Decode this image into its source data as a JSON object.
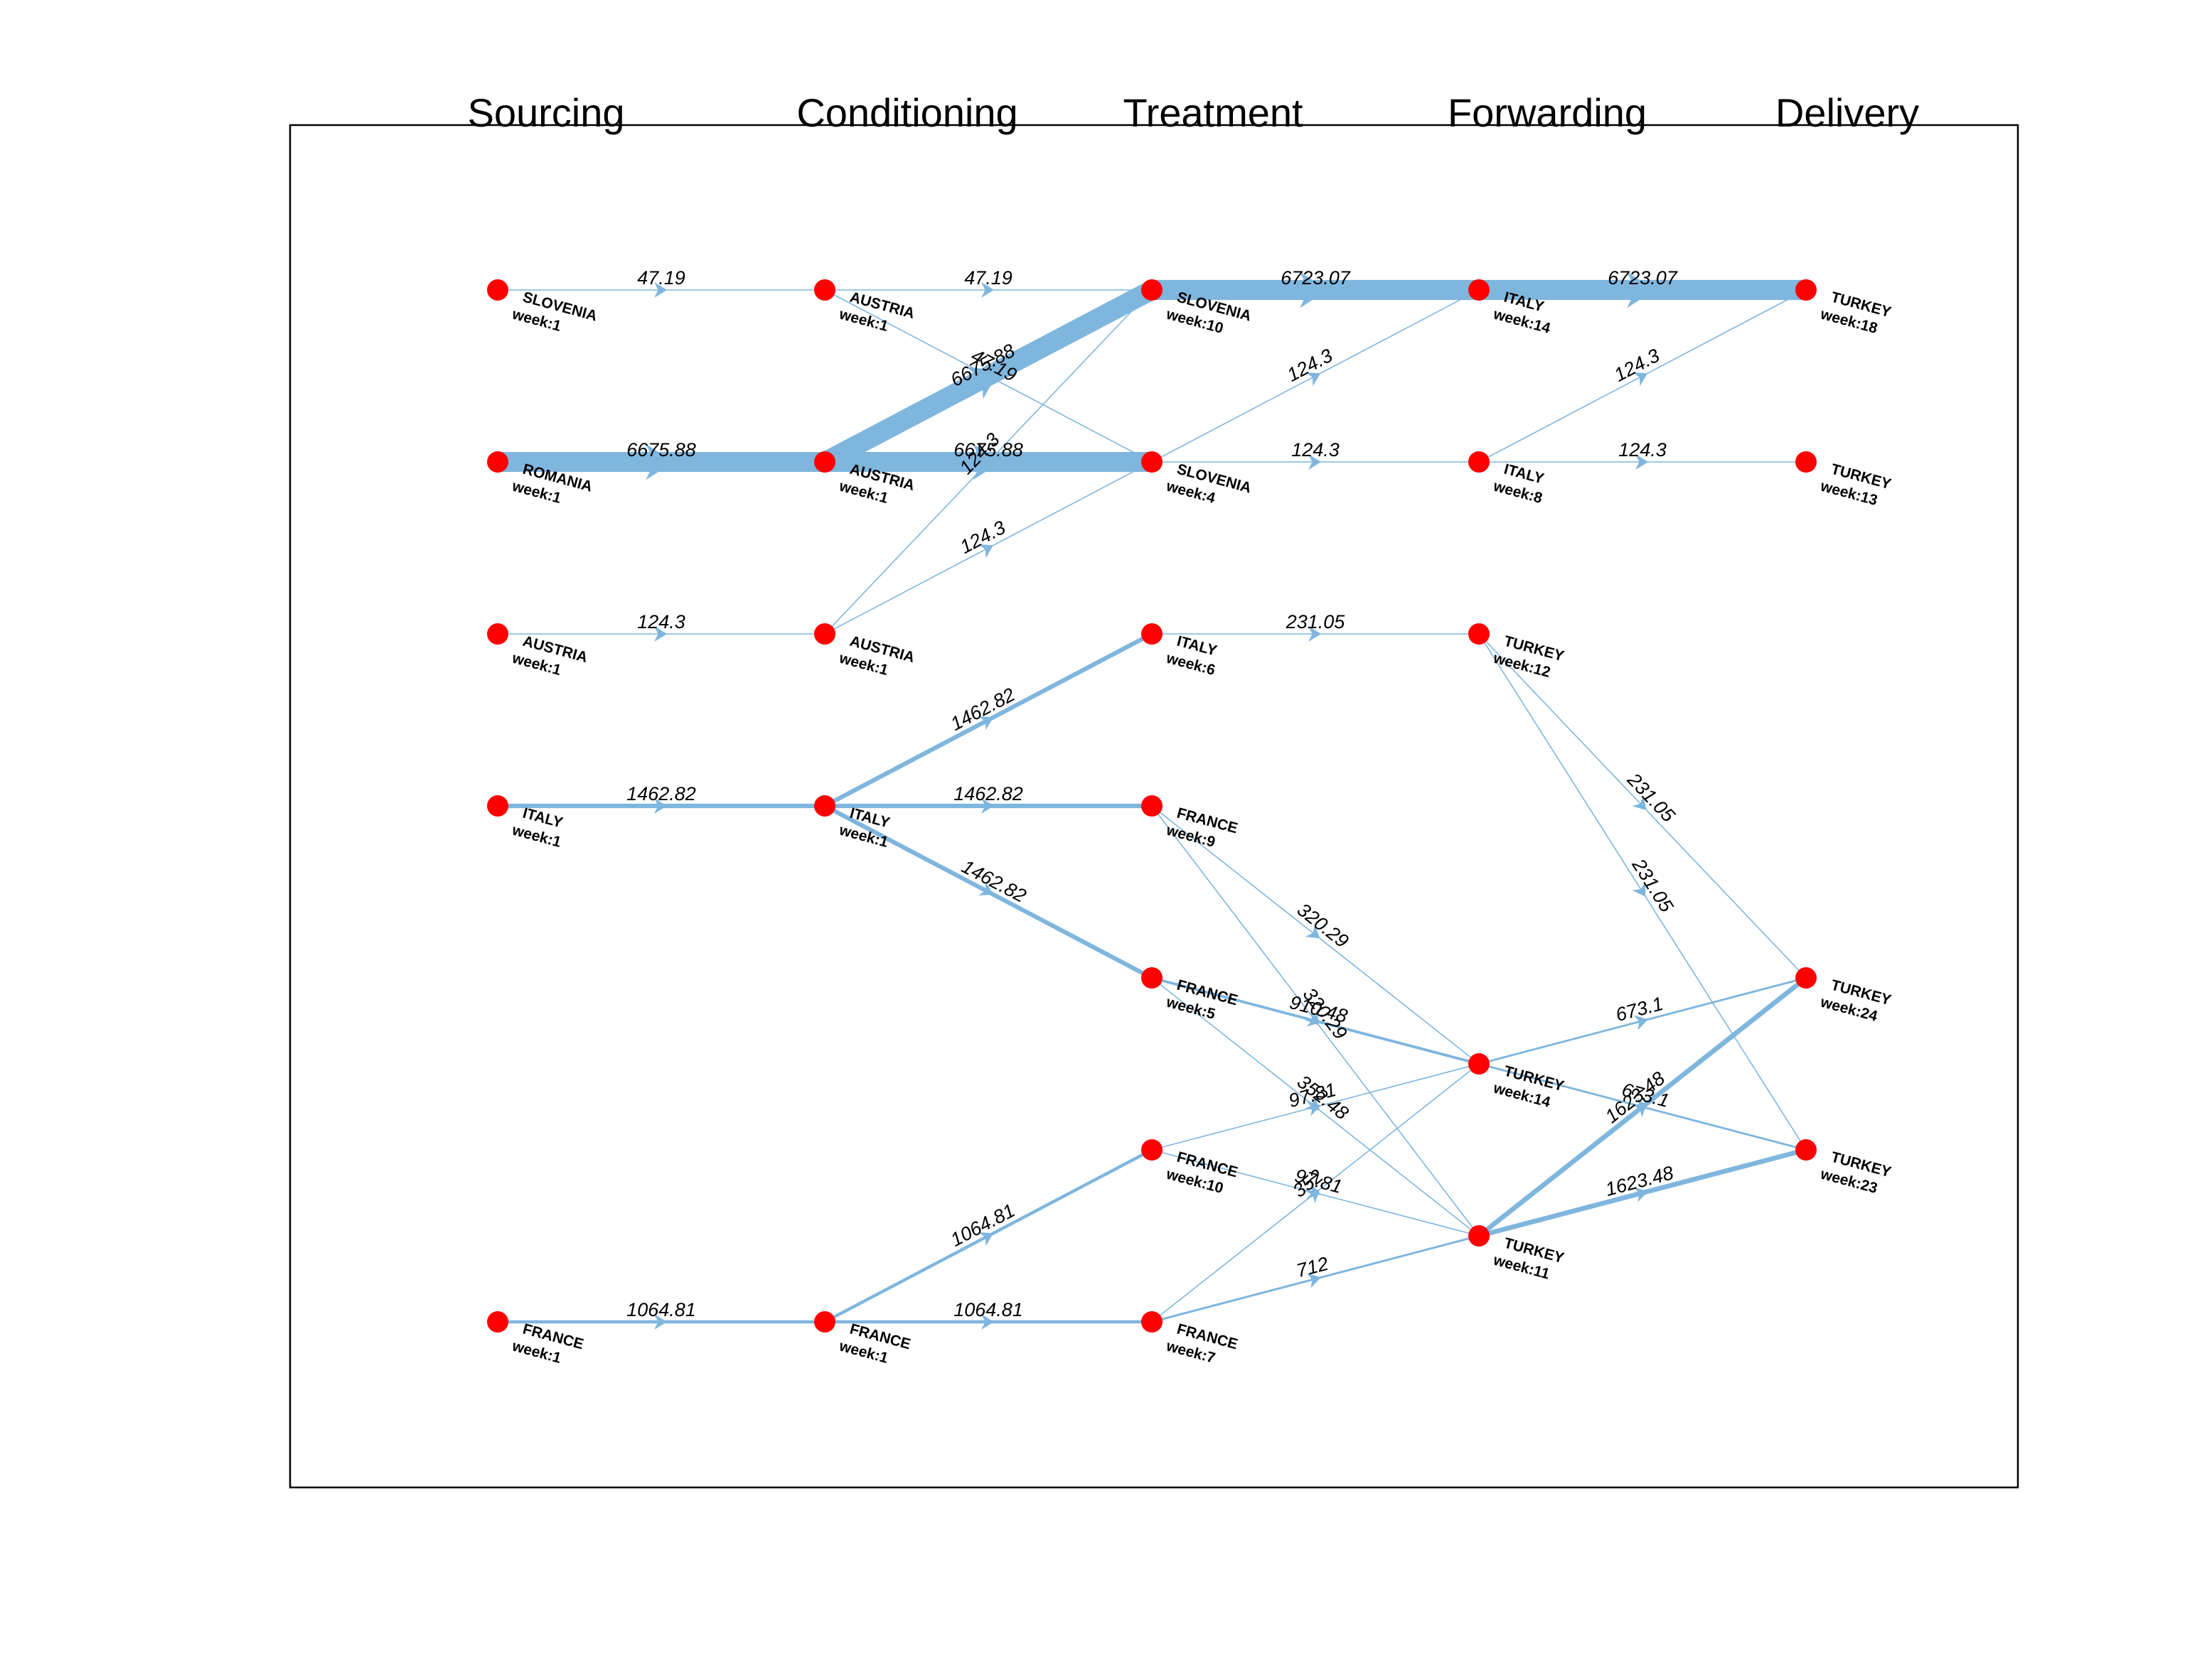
{
  "colors": {
    "edge": "#7fb6de",
    "node": "#ff0000",
    "frame": "#000000"
  },
  "stages": [
    "Sourcing",
    "Conditioning",
    "Treatment",
    "Forwarding",
    "Delivery"
  ],
  "nodes": [
    {
      "id": "s_slo",
      "stage": 0,
      "row": 0,
      "name": "SLOVENIA",
      "week": "week:1"
    },
    {
      "id": "s_rom",
      "stage": 0,
      "row": 1,
      "name": "ROMANIA",
      "week": "week:1"
    },
    {
      "id": "s_aut",
      "stage": 0,
      "row": 2,
      "name": "AUSTRIA",
      "week": "week:1"
    },
    {
      "id": "s_ita",
      "stage": 0,
      "row": 3,
      "name": "ITALY",
      "week": "week:1"
    },
    {
      "id": "s_fra",
      "stage": 0,
      "row": 6,
      "name": "FRANCE",
      "week": "week:1"
    },
    {
      "id": "c_aut0",
      "stage": 1,
      "row": 0,
      "name": "AUSTRIA",
      "week": "week:1"
    },
    {
      "id": "c_aut1",
      "stage": 1,
      "row": 1,
      "name": "AUSTRIA",
      "week": "week:1"
    },
    {
      "id": "c_aut2",
      "stage": 1,
      "row": 2,
      "name": "AUSTRIA",
      "week": "week:1"
    },
    {
      "id": "c_ita",
      "stage": 1,
      "row": 3,
      "name": "ITALY",
      "week": "week:1"
    },
    {
      "id": "c_fra",
      "stage": 1,
      "row": 6,
      "name": "FRANCE",
      "week": "week:1"
    },
    {
      "id": "t_slo10",
      "stage": 2,
      "row": 0,
      "name": "SLOVENIA",
      "week": "week:10"
    },
    {
      "id": "t_slo4",
      "stage": 2,
      "row": 1,
      "name": "SLOVENIA",
      "week": "week:4"
    },
    {
      "id": "t_ita6",
      "stage": 2,
      "row": 2,
      "name": "ITALY",
      "week": "week:6"
    },
    {
      "id": "t_fra9",
      "stage": 2,
      "row": 3,
      "name": "FRANCE",
      "week": "week:9"
    },
    {
      "id": "t_fra5",
      "stage": 2,
      "row": 4,
      "name": "FRANCE",
      "week": "week:5"
    },
    {
      "id": "t_fra10",
      "stage": 2,
      "row": 5,
      "name": "FRANCE",
      "week": "week:10"
    },
    {
      "id": "t_fra7",
      "stage": 2,
      "row": 6,
      "name": "FRANCE",
      "week": "week:7"
    },
    {
      "id": "f_ita14",
      "stage": 3,
      "row": 0,
      "name": "ITALY",
      "week": "week:14"
    },
    {
      "id": "f_ita8",
      "stage": 3,
      "row": 1,
      "name": "ITALY",
      "week": "week:8"
    },
    {
      "id": "f_tur12",
      "stage": 3,
      "row": 2,
      "name": "TURKEY",
      "week": "week:12"
    },
    {
      "id": "f_tur14",
      "stage": 3,
      "row": 4.5,
      "name": "TURKEY",
      "week": "week:14"
    },
    {
      "id": "f_tur11",
      "stage": 3,
      "row": 5.5,
      "name": "TURKEY",
      "week": "week:11"
    },
    {
      "id": "d_tur18",
      "stage": 4,
      "row": 0,
      "name": "TURKEY",
      "week": "week:18"
    },
    {
      "id": "d_tur13",
      "stage": 4,
      "row": 1,
      "name": "TURKEY",
      "week": "week:13"
    },
    {
      "id": "d_tur24",
      "stage": 4,
      "row": 4,
      "name": "TURKEY",
      "week": "week:24"
    },
    {
      "id": "d_tur23",
      "stage": 4,
      "row": 5,
      "name": "TURKEY",
      "week": "week:23"
    }
  ],
  "edges": [
    {
      "from": "s_slo",
      "to": "c_aut0",
      "value": 47.19,
      "label": "47.19"
    },
    {
      "from": "s_rom",
      "to": "c_aut1",
      "value": 6675.88,
      "label": "6675.88"
    },
    {
      "from": "s_aut",
      "to": "c_aut2",
      "value": 124.3,
      "label": "124.3"
    },
    {
      "from": "s_ita",
      "to": "c_ita",
      "value": 1462.82,
      "label": "1462.82"
    },
    {
      "from": "s_fra",
      "to": "c_fra",
      "value": 1064.81,
      "label": "1064.81"
    },
    {
      "from": "c_aut0",
      "to": "t_slo10",
      "value": 47.19,
      "label": "47.19"
    },
    {
      "from": "c_aut0",
      "to": "t_slo4",
      "value": 47.19,
      "label": "47.19"
    },
    {
      "from": "c_aut1",
      "to": "t_slo10",
      "value": 6675.88,
      "label": "6675.88"
    },
    {
      "from": "c_aut1",
      "to": "t_slo4",
      "value": 6675.88,
      "label": "6675.88"
    },
    {
      "from": "c_aut2",
      "to": "t_slo10",
      "value": 124.3,
      "label": "124.3"
    },
    {
      "from": "c_aut2",
      "to": "t_slo4",
      "value": 124.3,
      "label": "124.3"
    },
    {
      "from": "c_ita",
      "to": "t_ita6",
      "value": 1462.82,
      "label": "1462.82"
    },
    {
      "from": "c_ita",
      "to": "t_fra9",
      "value": 1462.82,
      "label": "1462.82"
    },
    {
      "from": "c_ita",
      "to": "t_fra5",
      "value": 1462.82,
      "label": "1462.82"
    },
    {
      "from": "c_fra",
      "to": "t_fra10",
      "value": 1064.81,
      "label": "1064.81"
    },
    {
      "from": "c_fra",
      "to": "t_fra7",
      "value": 1064.81,
      "label": "1064.81"
    },
    {
      "from": "t_slo10",
      "to": "f_ita14",
      "value": 6723.07,
      "label": "6723.07"
    },
    {
      "from": "t_slo4",
      "to": "f_ita14",
      "value": 124.3,
      "label": "124.3"
    },
    {
      "from": "t_slo4",
      "to": "f_ita8",
      "value": 124.3,
      "label": "124.3"
    },
    {
      "from": "t_ita6",
      "to": "f_tur12",
      "value": 231.05,
      "label": "231.05"
    },
    {
      "from": "t_fra9",
      "to": "f_tur14",
      "value": 320.29,
      "label": "320.29"
    },
    {
      "from": "t_fra9",
      "to": "f_tur11",
      "value": 320.29,
      "label": "320.29"
    },
    {
      "from": "t_fra5",
      "to": "f_tur14",
      "value": 910.48,
      "label": "910.48"
    },
    {
      "from": "t_fra5",
      "to": "f_tur11",
      "value": 352.48,
      "label": "352.48"
    },
    {
      "from": "t_fra10",
      "to": "f_tur14",
      "value": 97.81,
      "label": "97.81"
    },
    {
      "from": "t_fra10",
      "to": "f_tur11",
      "value": 97.81,
      "label": "97.81"
    },
    {
      "from": "t_fra7",
      "to": "f_tur14",
      "value": 352,
      "label": "352"
    },
    {
      "from": "t_fra7",
      "to": "f_tur11",
      "value": 712,
      "label": "712"
    },
    {
      "from": "f_ita14",
      "to": "d_tur18",
      "value": 6723.07,
      "label": "6723.07"
    },
    {
      "from": "f_ita8",
      "to": "d_tur18",
      "value": 124.3,
      "label": "124.3"
    },
    {
      "from": "f_ita8",
      "to": "d_tur13",
      "value": 124.3,
      "label": "124.3"
    },
    {
      "from": "f_tur12",
      "to": "d_tur24",
      "value": 231.05,
      "label": "231.05"
    },
    {
      "from": "f_tur12",
      "to": "d_tur23",
      "value": 231.05,
      "label": "231.05"
    },
    {
      "from": "f_tur14",
      "to": "d_tur24",
      "value": 673.1,
      "label": "673.1"
    },
    {
      "from": "f_tur14",
      "to": "d_tur23",
      "value": 673.1,
      "label": "673.1"
    },
    {
      "from": "f_tur11",
      "to": "d_tur24",
      "value": 1623.48,
      "label": "1623.48"
    },
    {
      "from": "f_tur11",
      "to": "d_tur23",
      "value": 1623.48,
      "label": "1623.48"
    }
  ]
}
